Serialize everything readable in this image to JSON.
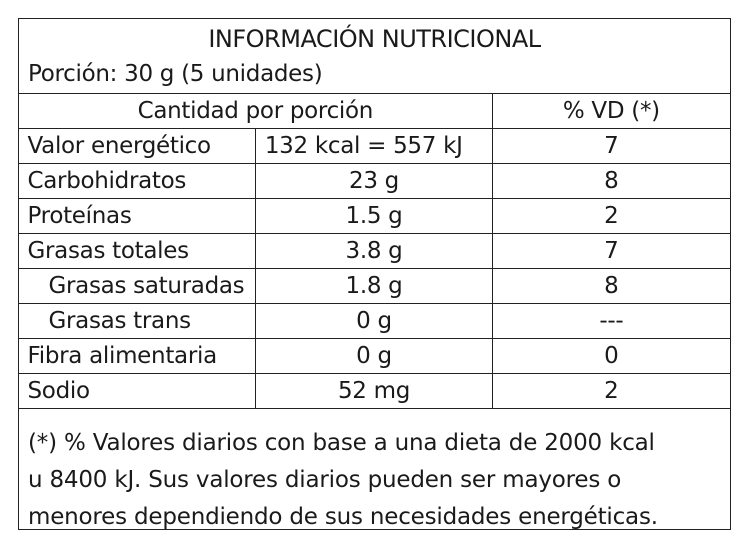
{
  "title": "INFORMACIÓN NUTRICIONAL",
  "portion": "Porción: 30 g (5 unidades)",
  "header": {
    "amount": "Cantidad por porción",
    "dv": "% VD (*)"
  },
  "rows": [
    {
      "name": "Valor energético",
      "amount": "132 kcal = 557 kJ",
      "dv": "7"
    },
    {
      "name": "Carbohidratos",
      "amount": "23 g",
      "dv": "8"
    },
    {
      "name": "Proteínas",
      "amount": "1.5 g",
      "dv": "2"
    },
    {
      "name": "Grasas totales",
      "amount": "3.8 g",
      "dv": "7"
    },
    {
      "name": "Grasas saturadas",
      "amount": "1.8 g",
      "dv": "8"
    },
    {
      "name": "Grasas trans",
      "amount": "0 g",
      "dv": "---"
    },
    {
      "name": "Fibra alimentaria",
      "amount": "0 g",
      "dv": "0"
    },
    {
      "name": "Sodio",
      "amount": "52 mg",
      "dv": "2"
    }
  ],
  "footnote": {
    "line1": "(*) % Valores diarios con base a una dieta de 2000 kcal",
    "line2": "u 8400 kJ. Sus valores diarios pueden ser mayores o",
    "line3": "menores dependiendo de sus necesidades energéticas."
  }
}
